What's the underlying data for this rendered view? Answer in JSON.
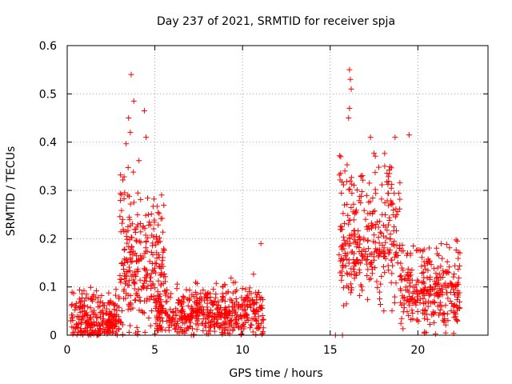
{
  "chart_data": {
    "type": "scatter",
    "title": "Day 237 of 2021, SRMTID for receiver spja",
    "xlabel": "GPS time / hours",
    "ylabel": "SRMTID / TECUs",
    "xlim": [
      0,
      24
    ],
    "ylim": [
      0,
      0.6
    ],
    "xticks": [
      0,
      5,
      10,
      15,
      20
    ],
    "xtick_labels": [
      "0",
      "5",
      "10",
      "15",
      "20"
    ],
    "yticks": [
      0,
      0.1,
      0.2,
      0.3,
      0.4,
      0.5,
      0.6
    ],
    "ytick_labels": [
      "0",
      "0.1",
      "0.2",
      "0.3",
      "0.4",
      "0.5",
      "0.6"
    ],
    "grid": true,
    "marker": "+",
    "color": "#ff0000",
    "series": [
      {
        "name": "SRMTID",
        "description": "dense point cloud sampled from plot envelope",
        "clusters": [
          {
            "x_range": [
              0.2,
              3.0
            ],
            "y_mean": 0.03,
            "y_spread": 0.03,
            "y_max": 0.12,
            "count": 260
          },
          {
            "x_range": [
              3.0,
              4.2
            ],
            "y_mean": 0.15,
            "y_spread": 0.1,
            "y_max": 0.45,
            "count": 150
          },
          {
            "x_range": [
              4.2,
              5.6
            ],
            "y_mean": 0.14,
            "y_spread": 0.07,
            "y_max": 0.3,
            "count": 130
          },
          {
            "x_range": [
              5.0,
              11.2
            ],
            "y_mean": 0.045,
            "y_spread": 0.03,
            "y_max": 0.17,
            "count": 520
          },
          {
            "x_range": [
              15.5,
              19.0
            ],
            "y_mean": 0.2,
            "y_spread": 0.08,
            "y_max": 0.38,
            "count": 330
          },
          {
            "x_range": [
              19.0,
              22.4
            ],
            "y_mean": 0.09,
            "y_spread": 0.05,
            "y_max": 0.2,
            "count": 300
          }
        ],
        "highlights": [
          {
            "x": 3.65,
            "y": 0.54
          },
          {
            "x": 3.8,
            "y": 0.485
          },
          {
            "x": 4.4,
            "y": 0.465
          },
          {
            "x": 3.5,
            "y": 0.45
          },
          {
            "x": 3.6,
            "y": 0.42
          },
          {
            "x": 4.5,
            "y": 0.41
          },
          {
            "x": 16.1,
            "y": 0.55
          },
          {
            "x": 16.15,
            "y": 0.53
          },
          {
            "x": 16.2,
            "y": 0.51
          },
          {
            "x": 16.1,
            "y": 0.47
          },
          {
            "x": 16.05,
            "y": 0.45
          },
          {
            "x": 17.3,
            "y": 0.41
          },
          {
            "x": 19.5,
            "y": 0.415
          },
          {
            "x": 18.7,
            "y": 0.41
          },
          {
            "x": 11.05,
            "y": 0.19
          },
          {
            "x": 22.25,
            "y": 0.195
          },
          {
            "x": 7.2,
            "y": 0.0
          },
          {
            "x": 15.3,
            "y": 0.0
          },
          {
            "x": 15.7,
            "y": 0.0
          }
        ]
      }
    ]
  }
}
